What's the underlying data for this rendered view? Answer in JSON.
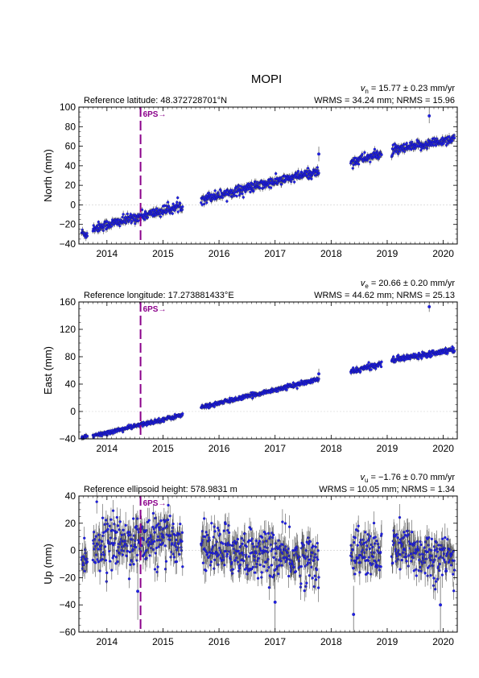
{
  "title": "MOPI",
  "colors": {
    "points": "#1f1fe6",
    "point_edge": "#101080",
    "errorbar": "#555555",
    "event_line": "#8b008b",
    "zero_line": "#cccccc"
  },
  "chart_data": [
    {
      "type": "scatter",
      "id": "north",
      "ylabel": "North (mm)",
      "reference": "Reference latitude: 48.372728701°N",
      "velocity_prefix": "v",
      "velocity_sub": "n",
      "velocity_text": " = 15.77 ± 0.23 mm/yr",
      "stats": "WRMS = 34.24 mm; NRMS = 15.96",
      "event_label": "6PS→",
      "event_x": 2014.6,
      "xlim": [
        2013.5,
        2020.25
      ],
      "ylim": [
        -40,
        100
      ],
      "yticks": [
        -40,
        -20,
        0,
        20,
        40,
        60,
        80,
        100
      ],
      "xticks": [
        "2014",
        "2015",
        "2016",
        "2017",
        "2018",
        "2019",
        "2020"
      ],
      "errorbar": 2.5,
      "segments": [
        {
          "x": [
            2013.55,
            2013.65
          ],
          "y": [
            -28,
            -31
          ],
          "noise": 2
        },
        {
          "x": [
            2013.75,
            2015.35
          ],
          "y": [
            -24,
            -1
          ],
          "noise": 2.5
        },
        {
          "x": [
            2015.68,
            2017.78
          ],
          "y": [
            6,
            34
          ],
          "noise": 2.5
        },
        {
          "x": [
            2018.35,
            2018.9
          ],
          "y": [
            44,
            52
          ],
          "noise": 2.5
        },
        {
          "x": [
            2019.08,
            2020.2
          ],
          "y": [
            55,
            68
          ],
          "noise": 2.5
        }
      ],
      "outliers": [
        {
          "x": 2019.75,
          "y": 91
        },
        {
          "x": 2017.78,
          "y": 52
        }
      ]
    },
    {
      "type": "scatter",
      "id": "east",
      "ylabel": "East (mm)",
      "reference": "Reference longitude: 17.273881433°E",
      "velocity_prefix": "v",
      "velocity_sub": "e",
      "velocity_text": " = 20.66 ± 0.20 mm/yr",
      "stats": "WRMS = 44.62 mm; NRMS = 25.13",
      "event_label": "6PS→",
      "event_x": 2014.6,
      "xlim": [
        2013.5,
        2020.25
      ],
      "ylim": [
        -40,
        160
      ],
      "yticks": [
        -40,
        0,
        40,
        80,
        120,
        160
      ],
      "xticks": [
        "2014",
        "2015",
        "2016",
        "2017",
        "2018",
        "2019",
        "2020"
      ],
      "errorbar": 2.5,
      "segments": [
        {
          "x": [
            2013.55,
            2013.65
          ],
          "y": [
            -38,
            -37
          ],
          "noise": 1.5
        },
        {
          "x": [
            2013.75,
            2015.35
          ],
          "y": [
            -36,
            -5
          ],
          "noise": 1.5
        },
        {
          "x": [
            2015.68,
            2017.78
          ],
          "y": [
            6,
            47
          ],
          "noise": 1.5
        },
        {
          "x": [
            2018.35,
            2018.9
          ],
          "y": [
            58,
            70
          ],
          "noise": 2
        },
        {
          "x": [
            2019.08,
            2020.2
          ],
          "y": [
            75,
            91
          ],
          "noise": 2
        }
      ],
      "outliers": [
        {
          "x": 2019.75,
          "y": 153
        },
        {
          "x": 2017.78,
          "y": 55
        }
      ]
    },
    {
      "type": "scatter",
      "id": "up",
      "ylabel": "Up (mm)",
      "reference": "Reference ellipsoid height: 578.9831 m",
      "velocity_prefix": "v",
      "velocity_sub": "u",
      "velocity_text": " = −1.76 ± 0.70 mm/yr",
      "stats": "WRMS = 10.05 mm; NRMS = 1.34",
      "event_label": "6PS→",
      "event_x": 2014.6,
      "xlim": [
        2013.5,
        2020.25
      ],
      "ylim": [
        -60,
        40
      ],
      "yticks": [
        -60,
        -40,
        -20,
        0,
        20,
        40
      ],
      "xticks": [
        "2014",
        "2015",
        "2016",
        "2017",
        "2018",
        "2019",
        "2020"
      ],
      "errorbar": 7,
      "segments": [
        {
          "x": [
            2013.55,
            2013.65
          ],
          "y": [
            -5,
            -8
          ],
          "noise": 6
        },
        {
          "x": [
            2013.75,
            2015.35
          ],
          "y": [
            5,
            8
          ],
          "noise": 9
        },
        {
          "x": [
            2015.68,
            2017.78
          ],
          "y": [
            3,
            -8
          ],
          "noise": 9
        },
        {
          "x": [
            2018.35,
            2018.9
          ],
          "y": [
            0,
            -4
          ],
          "noise": 9
        },
        {
          "x": [
            2019.08,
            2020.2
          ],
          "y": [
            3,
            -8
          ],
          "noise": 9
        }
      ],
      "outliers": [
        {
          "x": 2014.55,
          "y": -30
        },
        {
          "x": 2018.4,
          "y": -47
        },
        {
          "x": 2019.95,
          "y": -40
        },
        {
          "x": 2017.0,
          "y": -38
        }
      ]
    }
  ]
}
